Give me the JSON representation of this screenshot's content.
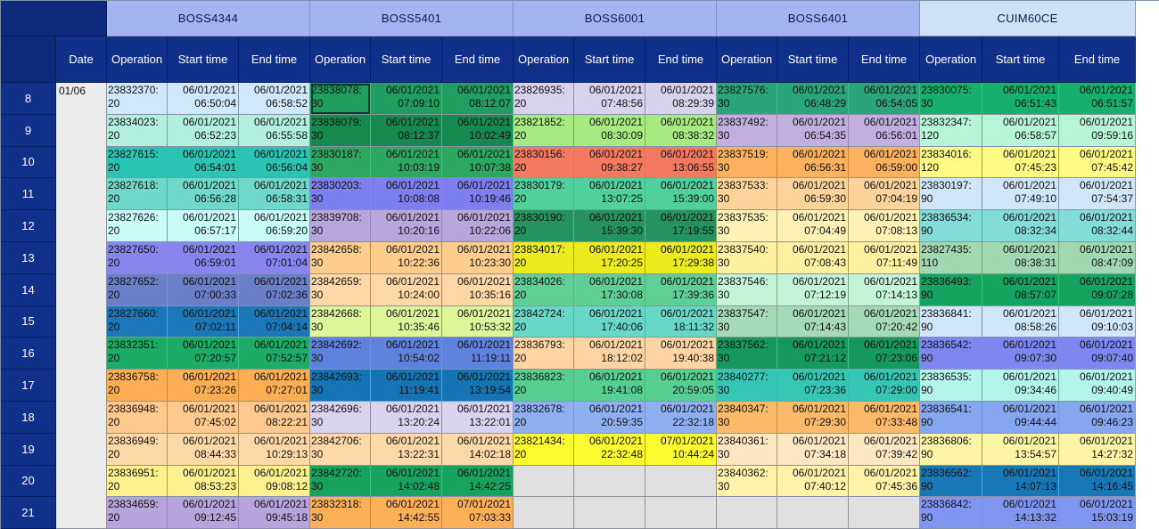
{
  "equipment": [
    {
      "name": "BOSS4344",
      "bg": "#a3b4f2"
    },
    {
      "name": "BOSS5401",
      "bg": "#a3b4f2"
    },
    {
      "name": "BOSS6001",
      "bg": "#a3b4f2"
    },
    {
      "name": "BOSS6401",
      "bg": "#a3b4f2"
    },
    {
      "name": "CUIM60CE",
      "bg": "#cfe0f7"
    }
  ],
  "headers": {
    "date": "Date",
    "operation": "Operation",
    "start": "Start time",
    "end": "End time"
  },
  "date_value": "01/06",
  "hours": [
    "8",
    "9",
    "10",
    "11",
    "12",
    "13",
    "14",
    "15",
    "16",
    "17",
    "18",
    "19",
    "20",
    "21"
  ],
  "rows": [
    [
      [
        "23832370:\n20",
        "06/01/2021\n06:50:04",
        "06/01/2021\n06:58:52",
        "#cfe8fb"
      ],
      [
        "23838078:\n30",
        "06/01/2021\n07:09:10",
        "06/01/2021\n08:12:07",
        "#1f9e5f"
      ],
      [
        "23826935:\n20",
        "06/01/2021\n07:48:56",
        "06/01/2021\n08:29:39",
        "#d8d2ee"
      ],
      [
        "23827576:\n30",
        "06/01/2021\n06:48:29",
        "06/01/2021\n06:54:05",
        "#2aa47a"
      ],
      [
        "23830075:\n30",
        "06/01/2021\n06:51:43",
        "06/01/2021\n06:51:57",
        "#16b06c"
      ]
    ],
    [
      [
        "23834023:\n20",
        "06/01/2021\n06:52:23",
        "06/01/2021\n06:55:58",
        "#b3efe0"
      ],
      [
        "23838079:\n30",
        "06/01/2021\n08:12:37",
        "06/01/2021\n10:02:49",
        "#168a4e"
      ],
      [
        "23821852:\n20",
        "06/01/2021\n08:30:09",
        "06/01/2021\n08:38:32",
        "#a8ea82"
      ],
      [
        "23837492:\n30",
        "06/01/2021\n06:54:35",
        "06/01/2021\n06:56:01",
        "#c3aee0"
      ],
      [
        "23832347:\n120",
        "06/01/2021\n06:58:57",
        "06/01/2021\n09:59:16",
        "#b8f5d8"
      ]
    ],
    [
      [
        "23827615:\n20",
        "06/01/2021\n06:54:01",
        "06/01/2021\n06:56:04",
        "#2ac3b4"
      ],
      [
        "23830187:\n30",
        "06/01/2021\n10:03:19",
        "06/01/2021\n10:07:38",
        "#2da860"
      ],
      [
        "23830156:\n20",
        "06/01/2021\n09:38:27",
        "06/01/2021\n13:06:55",
        "#f37a60"
      ],
      [
        "23837519:\n30",
        "06/01/2021\n06:56:31",
        "06/01/2021\n06:59:00",
        "#fbb15e"
      ],
      [
        "23834016:\n120",
        "06/01/2021\n07:45:23",
        "06/01/2021\n07:45:42",
        "#fdfb84"
      ]
    ],
    [
      [
        "23827618:\n20",
        "06/01/2021\n06:56:28",
        "06/01/2021\n06:58:31",
        "#6ed9c8"
      ],
      [
        "23830203:\n30",
        "06/01/2021\n10:08:08",
        "06/01/2021\n10:19:46",
        "#7d7ff0"
      ],
      [
        "23830179:\n20",
        "06/01/2021\n13:07:25",
        "06/01/2021\n15:39:00",
        "#50d09a"
      ],
      [
        "23837533:\n30",
        "06/01/2021\n06:59:30",
        "06/01/2021\n07:04:19",
        "#fcd39a"
      ],
      [
        "23830197:\n90",
        "06/01/2021\n07:49:10",
        "06/01/2021\n07:54:37",
        "#d2e6fb"
      ]
    ],
    [
      [
        "23827626:\n20",
        "06/01/2021\n06:57:17",
        "06/01/2021\n06:59:20",
        "#c8fcf6"
      ],
      [
        "23839708:\n30",
        "06/01/2021\n10:20:16",
        "06/01/2021\n10:22:06",
        "#b7a6dc"
      ],
      [
        "23830190:\n20",
        "06/01/2021\n15:39:30",
        "06/01/2021\n17:19:55",
        "#25925f"
      ],
      [
        "23837535:\n30",
        "06/01/2021\n07:04:49",
        "06/01/2021\n07:08:13",
        "#fef1b6"
      ],
      [
        "23836534:\n90",
        "06/01/2021\n08:32:34",
        "06/01/2021\n08:32:44",
        "#84dcd8"
      ]
    ],
    [
      [
        "23827650:\n20",
        "06/01/2021\n06:59:01",
        "06/01/2021\n07:01:04",
        "#8886ee"
      ],
      [
        "23842658:\n30",
        "06/01/2021\n10:22:36",
        "06/01/2021\n10:23:30",
        "#fdcd8e"
      ],
      [
        "23834017:\n20",
        "06/01/2021\n17:20:25",
        "06/01/2021\n17:29:38",
        "#ebeb1e"
      ],
      [
        "23837540:\n30",
        "06/01/2021\n07:08:43",
        "06/01/2021\n07:11:49",
        "#fdf0a0"
      ],
      [
        "23827435:\n110",
        "06/01/2021\n08:38:31",
        "06/01/2021\n08:47:09",
        "#a1d8b2"
      ]
    ],
    [
      [
        "23827652:\n20",
        "06/01/2021\n07:00:33",
        "06/01/2021\n07:02:36",
        "#6a7fc8"
      ],
      [
        "23842659:\n30",
        "06/01/2021\n10:24:00",
        "06/01/2021\n10:35:16",
        "#fed7a6"
      ],
      [
        "23834026:\n20",
        "06/01/2021\n17:30:08",
        "06/01/2021\n17:39:36",
        "#5fcf96"
      ],
      [
        "23837546:\n30",
        "06/01/2021\n07:12:19",
        "06/01/2021\n07:14:13",
        "#c4f3d6"
      ],
      [
        "23836493:\n90",
        "06/01/2021\n08:57:07",
        "06/01/2021\n09:07:28",
        "#15a360"
      ]
    ],
    [
      [
        "23827660:\n20",
        "06/01/2021\n07:02:11",
        "06/01/2021\n07:04:14",
        "#1b78b8"
      ],
      [
        "23842668:\n30",
        "06/01/2021\n10:35:46",
        "06/01/2021\n10:53:32",
        "#dff59a"
      ],
      [
        "23842724:\n20",
        "06/01/2021\n17:40:06",
        "06/01/2021\n18:11:32",
        "#68d8c6"
      ],
      [
        "23837547:\n30",
        "06/01/2021\n07:14:43",
        "06/01/2021\n07:20:42",
        "#a6d9b6"
      ],
      [
        "23836841:\n90",
        "06/01/2021\n08:58:26",
        "06/01/2021\n09:10:03",
        "#cfe6fb"
      ]
    ],
    [
      [
        "23832351:\n20",
        "06/01/2021\n07:20:57",
        "06/01/2021\n07:52:57",
        "#1cac68"
      ],
      [
        "23842692:\n30",
        "06/01/2021\n10:54:02",
        "06/01/2021\n11:19:11",
        "#5f83dc"
      ],
      [
        "23836793:\n20",
        "06/01/2021\n18:12:02",
        "06/01/2021\n19:40:38",
        "#fed4a4"
      ],
      [
        "23837562:\n30",
        "06/01/2021\n07:21:12",
        "06/01/2021\n07:23:06",
        "#17985c"
      ],
      [
        "23836542:\n90",
        "06/01/2021\n09:07:30",
        "06/01/2021\n09:07:40",
        "#7e86f0"
      ]
    ],
    [
      [
        "23836758:\n20",
        "06/01/2021\n07:23:26",
        "06/01/2021\n07:27:01",
        "#fbae54"
      ],
      [
        "23842693:\n30",
        "06/01/2021\n11:19:41",
        "06/01/2021\n13:19:54",
        "#1474b4"
      ],
      [
        "23836823:\n20",
        "06/01/2021\n19:41:08",
        "06/01/2021\n20:59:05",
        "#58cf92"
      ],
      [
        "23840277:\n30",
        "06/01/2021\n07:23:36",
        "06/01/2021\n07:29:00",
        "#36c6b6"
      ],
      [
        "23836535:\n90",
        "06/01/2021\n09:34:46",
        "06/01/2021\n09:40:49",
        "#b3f5ea"
      ]
    ],
    [
      [
        "23836948:\n20",
        "06/01/2021\n07:45:02",
        "06/01/2021\n08:22:21",
        "#fdc98c"
      ],
      [
        "23842696:\n30",
        "06/01/2021\n13:20:24",
        "06/01/2021\n13:22:01",
        "#d9d3f0"
      ],
      [
        "23832678:\n20",
        "06/01/2021\n20:59:35",
        "06/01/2021\n22:32:18",
        "#8fb0f0"
      ],
      [
        "23840347:\n30",
        "06/01/2021\n07:29:30",
        "06/01/2021\n07:33:48",
        "#fbba6a"
      ],
      [
        "23836541:\n90",
        "06/01/2021\n09:44:44",
        "06/01/2021\n09:46:23",
        "#86a6ef"
      ]
    ],
    [
      [
        "23836949:\n20",
        "06/01/2021\n08:44:33",
        "06/01/2021\n10:29:13",
        "#fed9a8"
      ],
      [
        "23842706:\n30",
        "06/01/2021\n13:22:31",
        "06/01/2021\n14:02:18",
        "#fdd8a9"
      ],
      [
        "23821434:\n20",
        "06/01/2021\n22:32:48",
        "07/01/2021\n10:44:24",
        "#fcfb30"
      ],
      [
        "23840361:\n30",
        "06/01/2021\n07:34:18",
        "06/01/2021\n07:39:42",
        "#fde6c2"
      ],
      [
        "23836806:\n90",
        "06/01/2021\n13:54:57",
        "06/01/2021\n14:27:32",
        "#fcf5a6"
      ]
    ],
    [
      [
        "23836951:\n20",
        "06/01/2021\n08:53:23",
        "06/01/2021\n09:08:12",
        "#fdf08e"
      ],
      [
        "23842720:\n30",
        "06/01/2021\n14:02:48",
        "06/01/2021\n14:42:25",
        "#17a260"
      ],
      null,
      [
        "23840362:\n30",
        "06/01/2021\n07:40:12",
        "06/01/2021\n07:45:36",
        "#fef3a8"
      ],
      [
        "23836562:\n90",
        "06/01/2021\n14:07:13",
        "06/01/2021\n14:16:45",
        "#1878b6"
      ]
    ],
    [
      [
        "23834659:\n20",
        "06/01/2021\n09:12:45",
        "06/01/2021\n09:45:18",
        "#b8a4dc"
      ],
      [
        "23832318:\n30",
        "06/01/2021\n14:42:55",
        "07/01/2021\n07:03:33",
        "#fbb058"
      ],
      null,
      null,
      [
        "23836842:\n90",
        "06/01/2021\n14:13:32",
        "06/01/2021\n15:03:19",
        "#8096ee"
      ]
    ]
  ]
}
